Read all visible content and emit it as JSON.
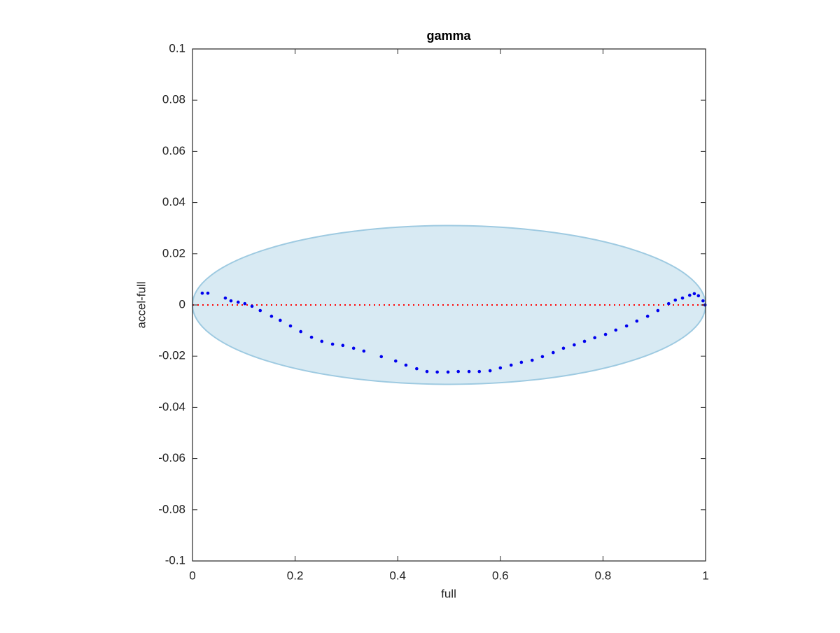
{
  "chart_data": {
    "type": "scatter",
    "title": "gamma",
    "x_label": "full",
    "y_label": "accel-full",
    "xlim": [
      0,
      1
    ],
    "ylim": [
      -0.1,
      0.1
    ],
    "xticks": [
      0,
      0.2,
      0.4,
      0.6,
      0.8,
      1
    ],
    "yticks": [
      -0.1,
      -0.08,
      -0.06,
      -0.04,
      -0.02,
      0,
      0.02,
      0.04,
      0.06,
      0.08,
      0.1
    ],
    "color": "#0000ee",
    "x": [
      0.019,
      0.03,
      0.064,
      0.075,
      0.089,
      0.102,
      0.116,
      0.132,
      0.154,
      0.171,
      0.191,
      0.211,
      0.232,
      0.252,
      0.273,
      0.293,
      0.314,
      0.334,
      0.368,
      0.396,
      0.416,
      0.437,
      0.457,
      0.477,
      0.498,
      0.518,
      0.539,
      0.559,
      0.58,
      0.6,
      0.621,
      0.641,
      0.662,
      0.682,
      0.703,
      0.723,
      0.744,
      0.764,
      0.784,
      0.805,
      0.825,
      0.846,
      0.866,
      0.887,
      0.907,
      0.928,
      0.941,
      0.955,
      0.969,
      0.978,
      0.986,
      0.995,
      0.999
    ],
    "values": [
      0.0046,
      0.0046,
      0.0027,
      0.0016,
      0.0011,
      0.0005,
      -0.0005,
      -0.0022,
      -0.0044,
      -0.006,
      -0.0082,
      -0.0104,
      -0.0126,
      -0.0142,
      -0.0153,
      -0.0158,
      -0.0169,
      -0.018,
      -0.0202,
      -0.0219,
      -0.0235,
      -0.0249,
      -0.026,
      -0.0262,
      -0.0262,
      -0.026,
      -0.026,
      -0.026,
      -0.0257,
      -0.0246,
      -0.0235,
      -0.0224,
      -0.0216,
      -0.0202,
      -0.0186,
      -0.0169,
      -0.0156,
      -0.0142,
      -0.0128,
      -0.0115,
      -0.0098,
      -0.0082,
      -0.0063,
      -0.0044,
      -0.0022,
      0.0005,
      0.0019,
      0.0027,
      0.0038,
      0.0044,
      0.0036,
      0.0016,
      0
    ],
    "ellipse": {
      "center": [
        0.5,
        0
      ],
      "radii": [
        0.5,
        0.031
      ],
      "color": "#9ecae1"
    },
    "reference_line": {
      "y": 0,
      "color": "#ff0000"
    }
  }
}
